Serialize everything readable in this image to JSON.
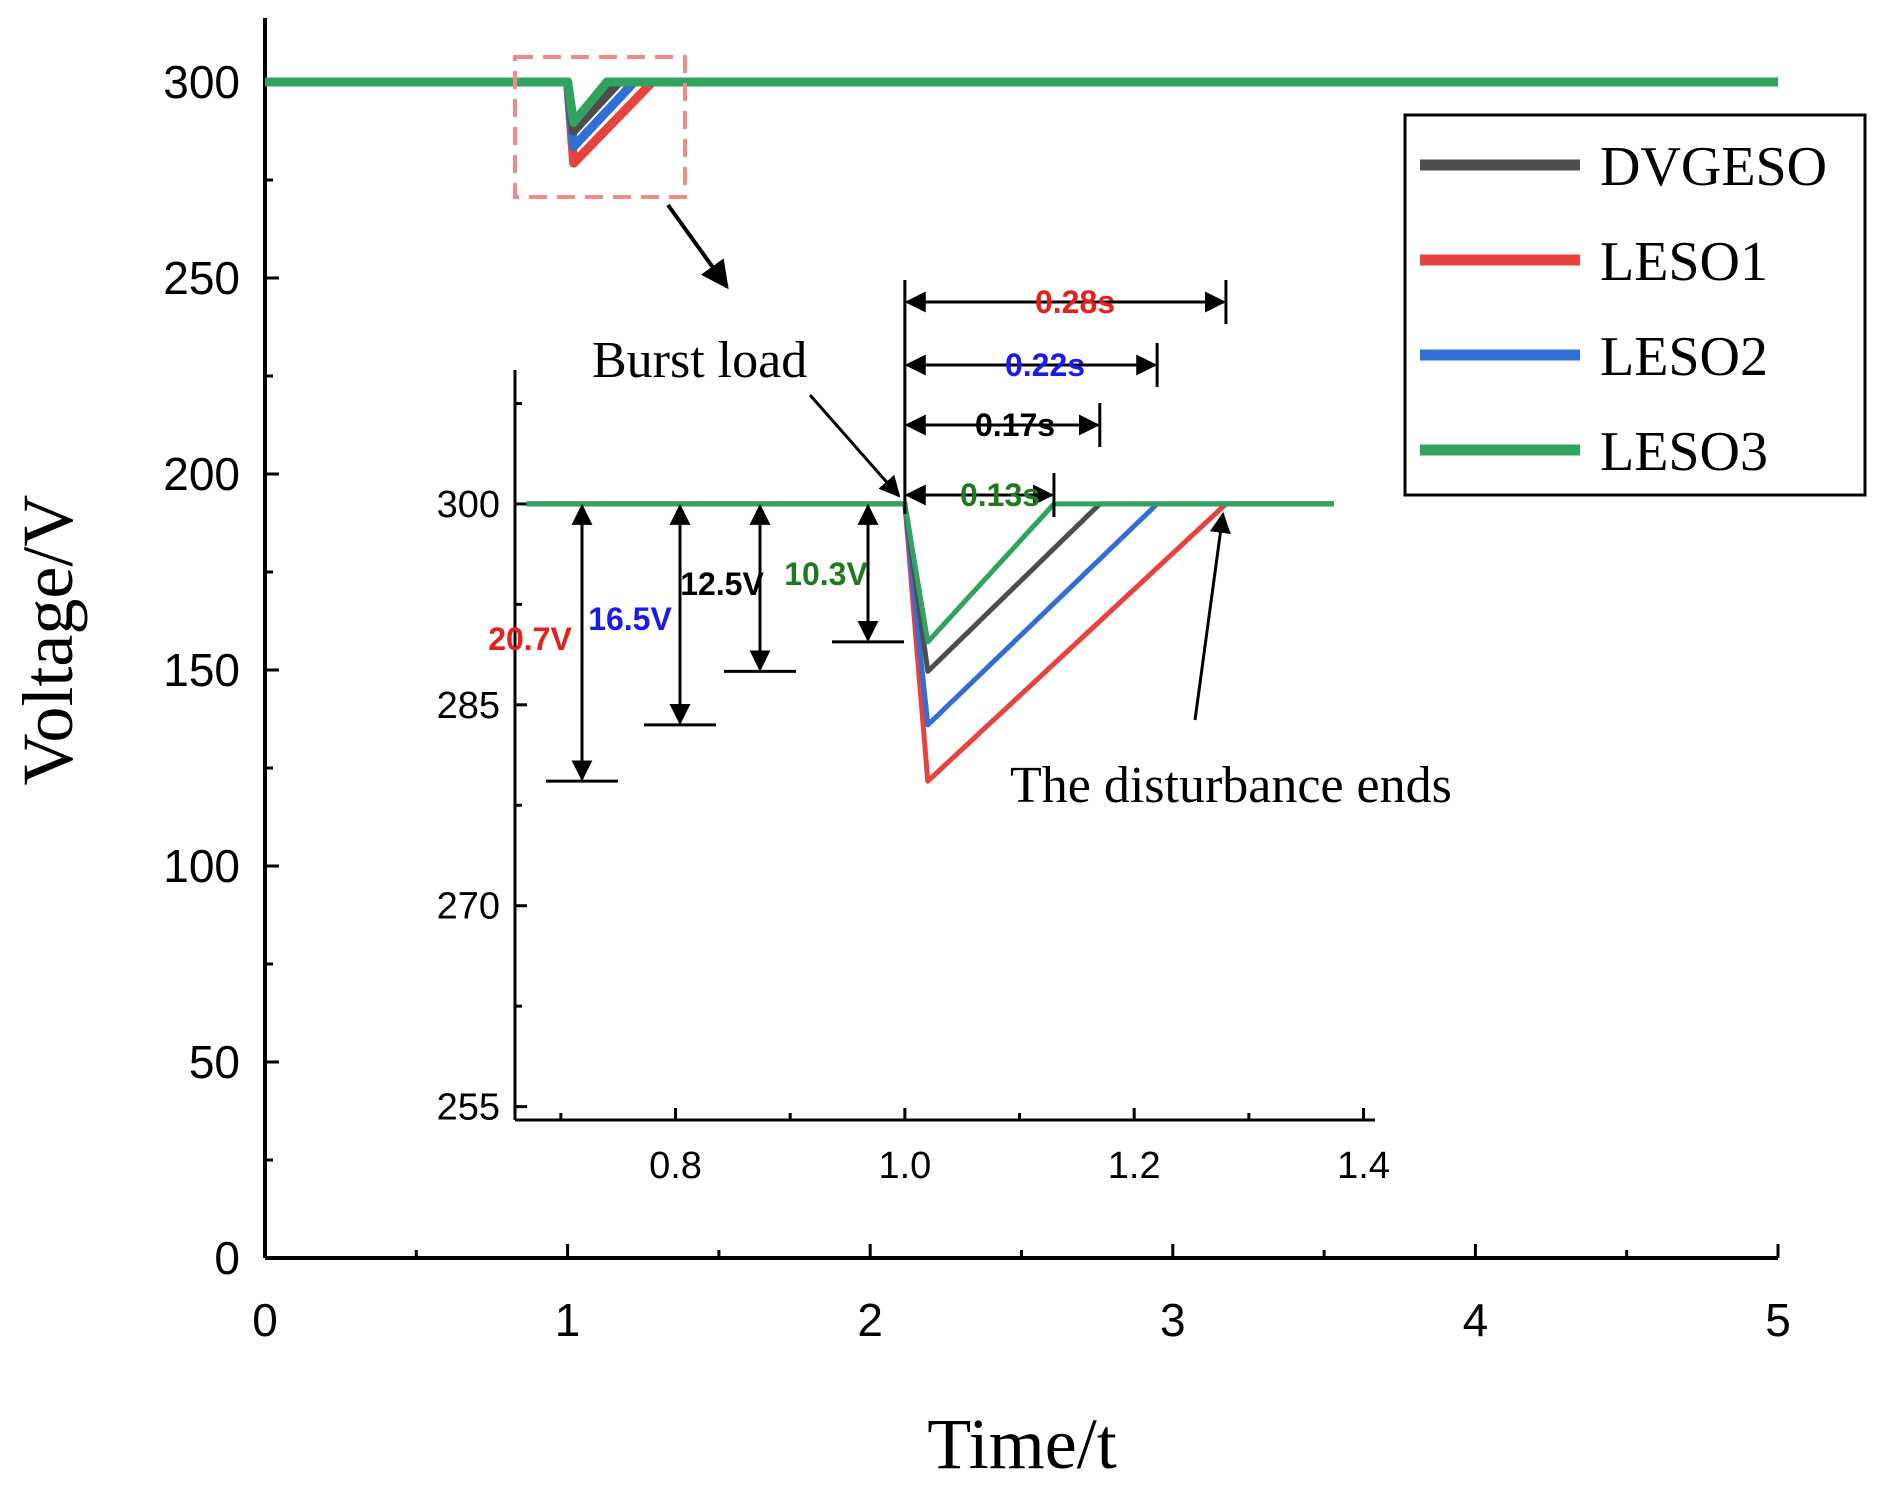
{
  "chart_data": {
    "type": "line",
    "title": "",
    "xlabel": "Time/t",
    "ylabel": "Voltage/V",
    "xlim": [
      0,
      5
    ],
    "ylim": [
      0,
      300
    ],
    "x_ticks": [
      0,
      1,
      2,
      3,
      4,
      5
    ],
    "y_ticks": [
      0,
      50,
      100,
      150,
      200,
      250,
      300
    ],
    "legend_position": "top-right",
    "series": [
      {
        "name": "DVGESO",
        "color": "#4d4d4d",
        "min_voltage": 287.5,
        "dip_time": 1.02,
        "recovery_time": 1.17
      },
      {
        "name": "LESO1",
        "color": "#e8413e",
        "min_voltage": 279.3,
        "dip_time": 1.02,
        "recovery_time": 1.28
      },
      {
        "name": "LESO2",
        "color": "#2f6fd6",
        "min_voltage": 283.5,
        "dip_time": 1.02,
        "recovery_time": 1.22
      },
      {
        "name": "LESO3",
        "color": "#2fa35f",
        "min_voltage": 289.7,
        "dip_time": 1.02,
        "recovery_time": 1.13
      }
    ],
    "steady_voltage": 300,
    "disturbance_time": 1.0,
    "inset": {
      "xlim": [
        0.66,
        1.41
      ],
      "ylim": [
        254,
        310
      ],
      "x_ticks": [
        "0.8",
        "1.0",
        "1.2",
        "1.4"
      ],
      "x_tick_values": [
        0.8,
        1.0,
        1.2,
        1.4
      ],
      "y_ticks": [
        "300",
        "285",
        "270",
        "255"
      ],
      "y_tick_values": [
        300,
        285,
        270,
        255
      ]
    },
    "annotations": {
      "burst_load": "Burst load",
      "disturbance_ends": "The disturbance ends",
      "times": [
        {
          "label": "0.28s",
          "value": 0.28,
          "color": "#e8201c"
        },
        {
          "label": "0.22s",
          "value": 0.22,
          "color": "#1a1af0"
        },
        {
          "label": "0.17s",
          "value": 0.17,
          "color": "#000000"
        },
        {
          "label": "0.13s",
          "value": 0.13,
          "color": "#1f7a1f"
        }
      ],
      "drops": [
        {
          "label": "20.7V",
          "value": 20.7,
          "color": "#e8201c"
        },
        {
          "label": "16.5V",
          "value": 16.5,
          "color": "#1a1af0"
        },
        {
          "label": "12.5V",
          "value": 12.5,
          "color": "#000000"
        },
        {
          "label": "10.3V",
          "value": 10.3,
          "color": "#1f7a1f"
        }
      ]
    }
  }
}
